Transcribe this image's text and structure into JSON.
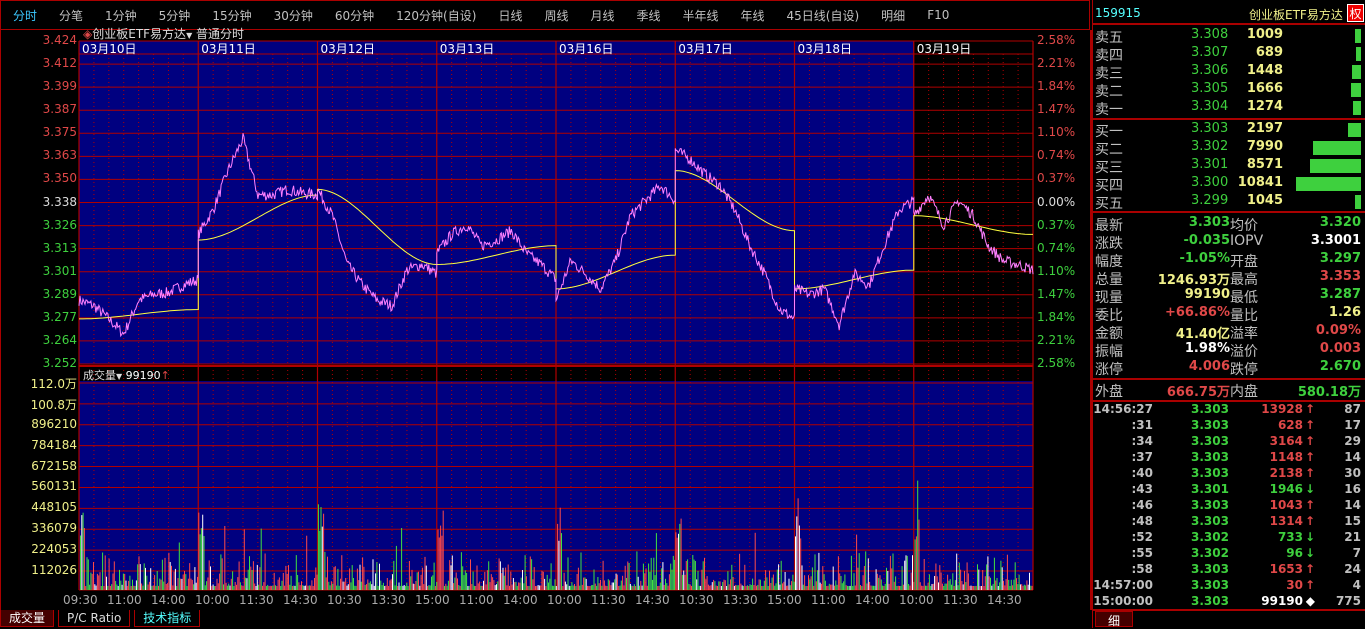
{
  "toolbar": {
    "tabs": [
      "分时",
      "分笔",
      "1分钟",
      "5分钟",
      "15分钟",
      "30分钟",
      "60分钟",
      "120分钟(自设)",
      "日线",
      "周线",
      "月线",
      "季线",
      "半年线",
      "年线",
      "45日线(自设)",
      "明细",
      "F10"
    ],
    "active": 0
  },
  "chart_header": {
    "symbol_name": "创业板ETF易方达",
    "mode": "普通分时"
  },
  "volume_header": {
    "label": "成交量",
    "value": "99190",
    "arrow": "↑"
  },
  "colors": {
    "background": "#000080",
    "grid": "#b00000",
    "up": "#ff4a4a",
    "down": "#40e040",
    "price_line": "#ff80ff",
    "avg_line": "#ffff40"
  },
  "chart_data": {
    "type": "line",
    "days": [
      "03月10日",
      "03月11日",
      "03月12日",
      "03月13日",
      "03月16日",
      "03月17日",
      "03月18日",
      "03月19日"
    ],
    "price_ticks": [
      "3.424",
      "3.412",
      "3.399",
      "3.387",
      "3.375",
      "3.363",
      "3.350",
      "3.338",
      "3.326",
      "3.313",
      "3.301",
      "3.289",
      "3.277",
      "3.264",
      "3.252"
    ],
    "pct_ticks": [
      "2.58%",
      "2.21%",
      "1.84%",
      "1.47%",
      "1.10%",
      "0.74%",
      "0.37%",
      "0.00%",
      "0.37%",
      "0.74%",
      "1.10%",
      "1.47%",
      "1.84%",
      "2.21%",
      "2.58%"
    ],
    "ylim": [
      3.252,
      3.424
    ],
    "prev_close": 3.338,
    "price_series": [
      [
        3.286,
        3.283,
        3.276,
        3.268,
        3.286,
        3.289,
        3.29,
        3.294,
        3.297
      ],
      [
        3.321,
        3.334,
        3.355,
        3.372,
        3.342,
        3.342,
        3.345,
        3.343,
        3.342
      ],
      [
        3.345,
        3.331,
        3.305,
        3.294,
        3.286,
        3.283,
        3.302,
        3.305,
        3.3
      ],
      [
        3.311,
        3.321,
        3.326,
        3.315,
        3.318,
        3.323,
        3.311,
        3.305,
        3.297
      ],
      [
        3.286,
        3.307,
        3.3,
        3.292,
        3.307,
        3.331,
        3.339,
        3.347,
        3.339
      ],
      [
        3.366,
        3.361,
        3.353,
        3.347,
        3.334,
        3.315,
        3.3,
        3.281,
        3.276
      ],
      [
        3.292,
        3.289,
        3.292,
        3.273,
        3.3,
        3.294,
        3.315,
        3.334,
        3.339
      ],
      [
        3.331,
        3.342,
        3.326,
        3.339,
        3.331,
        3.315,
        3.307,
        3.305,
        3.302
      ]
    ],
    "avg_series": [
      [
        3.276,
        3.281
      ],
      [
        3.318,
        3.342
      ],
      [
        3.345,
        3.305
      ],
      [
        3.305,
        3.315
      ],
      [
        3.292,
        3.31
      ],
      [
        3.355,
        3.323
      ],
      [
        3.292,
        3.302
      ],
      [
        3.331,
        3.321
      ]
    ],
    "volume_ticks": [
      "112.0万",
      "100.8万",
      "896210",
      "784184",
      "672158",
      "560131",
      "448105",
      "336079",
      "224053",
      "112026"
    ],
    "volume_max": 1120263,
    "time_ticks": [
      "09:30",
      "11:00",
      "14:00",
      "10:00",
      "11:30",
      "14:30",
      "10:30",
      "13:30",
      "15:00",
      "11:00",
      "14:00",
      "10:00",
      "11:30",
      "14:30",
      "10:30",
      "13:30",
      "15:00",
      "11:00",
      "14:00",
      "10:00",
      "11:30",
      "14:30"
    ]
  },
  "quote": {
    "code": "159915",
    "name": "创业板ETF易方达",
    "badge": "权",
    "asks": [
      {
        "label": "卖五",
        "price": "3.308",
        "vol": "1009",
        "ratio": 0.093
      },
      {
        "label": "卖四",
        "price": "3.307",
        "vol": "689",
        "ratio": 0.064
      },
      {
        "label": "卖三",
        "price": "3.306",
        "vol": "1448",
        "ratio": 0.134
      },
      {
        "label": "卖二",
        "price": "3.305",
        "vol": "1666",
        "ratio": 0.154
      },
      {
        "label": "卖一",
        "price": "3.304",
        "vol": "1274",
        "ratio": 0.118
      }
    ],
    "bids": [
      {
        "label": "买一",
        "price": "3.303",
        "vol": "2197",
        "ratio": 0.203
      },
      {
        "label": "买二",
        "price": "3.302",
        "vol": "7990",
        "ratio": 0.737
      },
      {
        "label": "买三",
        "price": "3.301",
        "vol": "8571",
        "ratio": 0.791
      },
      {
        "label": "买四",
        "price": "3.300",
        "vol": "10841",
        "ratio": 1.0
      },
      {
        "label": "买五",
        "price": "3.299",
        "vol": "1045",
        "ratio": 0.096
      }
    ],
    "stats": [
      {
        "l1": "最新",
        "v1": "3.303",
        "c1": "g",
        "l2": "均价",
        "v2": "3.320",
        "c2": "g"
      },
      {
        "l1": "涨跌",
        "v1": "-0.035",
        "c1": "g",
        "l2": "IOPV",
        "v2": "3.3001",
        "c2": "w"
      },
      {
        "l1": "幅度",
        "v1": "-1.05%",
        "c1": "g",
        "l2": "开盘",
        "v2": "3.297",
        "c2": "g"
      },
      {
        "l1": "总量",
        "v1": "1246.93万",
        "c1": "y",
        "l2": "最高",
        "v2": "3.353",
        "c2": "r"
      },
      {
        "l1": "现量",
        "v1": "99190",
        "c1": "y",
        "l2": "最低",
        "v2": "3.287",
        "c2": "g"
      },
      {
        "l1": "委比",
        "v1": "+66.86%",
        "c1": "r",
        "l2": "量比",
        "v2": "1.26",
        "c2": "y"
      },
      {
        "l1": "金额",
        "v1": "41.40亿",
        "c1": "y",
        "l2": "溢率",
        "v2": "0.09%",
        "c2": "r"
      },
      {
        "l1": "振幅",
        "v1": "1.98%",
        "c1": "w",
        "l2": "溢价",
        "v2": "0.003",
        "c2": "r"
      },
      {
        "l1": "涨停",
        "v1": "4.006",
        "c1": "r",
        "l2": "跌停",
        "v2": "2.670",
        "c2": "g"
      }
    ],
    "outer": {
      "l1": "外盘",
      "v1": "666.75万",
      "l2": "内盘",
      "v2": "580.18万"
    },
    "ticks": [
      {
        "t": "14:56:27",
        "p": "3.303",
        "v": "13928",
        "d": "↑",
        "dc": "r",
        "n": "87"
      },
      {
        "t": ":31",
        "p": "3.303",
        "v": "628",
        "d": "↑",
        "dc": "r",
        "n": "17"
      },
      {
        "t": ":34",
        "p": "3.303",
        "v": "3164",
        "d": "↑",
        "dc": "r",
        "n": "29"
      },
      {
        "t": ":37",
        "p": "3.303",
        "v": "1148",
        "d": "↑",
        "dc": "r",
        "n": "14"
      },
      {
        "t": ":40",
        "p": "3.303",
        "v": "2138",
        "d": "↑",
        "dc": "r",
        "n": "30"
      },
      {
        "t": ":43",
        "p": "3.301",
        "v": "1946",
        "d": "↓",
        "dc": "g",
        "n": "16"
      },
      {
        "t": ":46",
        "p": "3.303",
        "v": "1043",
        "d": "↑",
        "dc": "r",
        "n": "14"
      },
      {
        "t": ":48",
        "p": "3.303",
        "v": "1314",
        "d": "↑",
        "dc": "r",
        "n": "15"
      },
      {
        "t": ":52",
        "p": "3.302",
        "v": "733",
        "d": "↓",
        "dc": "g",
        "n": "21"
      },
      {
        "t": ":55",
        "p": "3.302",
        "v": "96",
        "d": "↓",
        "dc": "g",
        "n": "7"
      },
      {
        "t": ":58",
        "p": "3.303",
        "v": "1653",
        "d": "↑",
        "dc": "r",
        "n": "24"
      },
      {
        "t": "14:57:00",
        "p": "3.303",
        "v": "30",
        "d": "↑",
        "dc": "r",
        "n": "4"
      },
      {
        "t": "15:00:00",
        "p": "3.303",
        "v": "99190",
        "d": "◆",
        "dc": "w",
        "n": "775"
      }
    ],
    "detail_tab": "细"
  },
  "bottom_tabs": [
    "成交量",
    "P/C Ratio",
    "技术指标"
  ]
}
